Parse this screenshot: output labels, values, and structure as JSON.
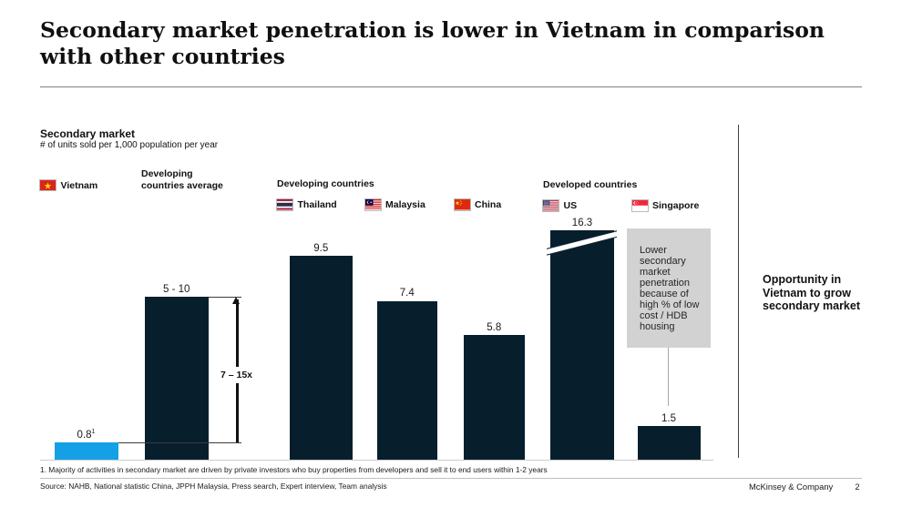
{
  "slide": {
    "title_line1": "Secondary market penetration is lower in Vietnam in comparison",
    "title_line2": "with other countries",
    "footnote": "1. Majority of activities in secondary market are driven by private investors who buy properties from developers and sell it to end users within 1-2 years",
    "source": "Source: NAHB, National statistic China, JPPH Malaysia, Press search, Expert interview, Team analysis",
    "brand": "McKinsey & Company",
    "page_number": "2"
  },
  "right_note": "Opportunity in Vietnam to grow secondary market",
  "chart_data": {
    "type": "bar",
    "title": "Secondary market",
    "subtitle": "# of units sold per 1,000 population per year",
    "ylabel": "# of units sold per 1,000 population per year",
    "ylim": [
      0,
      10.7
    ],
    "grid": false,
    "legend_position": "top",
    "groups": [
      {
        "label": "Developing countries"
      },
      {
        "label": "Developed countries"
      }
    ],
    "bars": [
      {
        "id": "vietnam",
        "label": "Vietnam",
        "value": 0.8,
        "value_label": "0.8",
        "value_superscript": "1",
        "color": "#14a0e6",
        "flag": "vietnam"
      },
      {
        "id": "developing-average",
        "label": "Developing countries average",
        "value": 7.5,
        "drawn_value": 7.6,
        "value_label": "5 - 10",
        "color": "#071e2d"
      },
      {
        "id": "thailand",
        "label": "Thailand",
        "value": 9.5,
        "value_label": "9.5",
        "color": "#071e2d",
        "group": "Developing countries",
        "flag": "thailand"
      },
      {
        "id": "malaysia",
        "label": "Malaysia",
        "value": 7.4,
        "value_label": "7.4",
        "color": "#071e2d",
        "group": "Developing countries",
        "flag": "malaysia"
      },
      {
        "id": "china",
        "label": "China",
        "value": 5.8,
        "value_label": "5.8",
        "color": "#071e2d",
        "group": "Developing countries",
        "flag": "china"
      },
      {
        "id": "us",
        "label": "US",
        "value": 16.3,
        "drawn_value": 10.7,
        "axis_break": true,
        "value_label": "16.3",
        "color": "#071e2d",
        "group": "Developed countries",
        "flag": "us"
      },
      {
        "id": "singapore",
        "label": "Singapore",
        "value": 1.5,
        "drawn_value": 1.57,
        "value_label": "1.5",
        "color": "#071e2d",
        "group": "Developed countries",
        "flag": "singapore"
      }
    ],
    "annotations": {
      "multiplier_label": "7 – 15x",
      "annotation_box_text": "Lower secondary market penetration because of high % of low cost / HDB housing"
    }
  }
}
